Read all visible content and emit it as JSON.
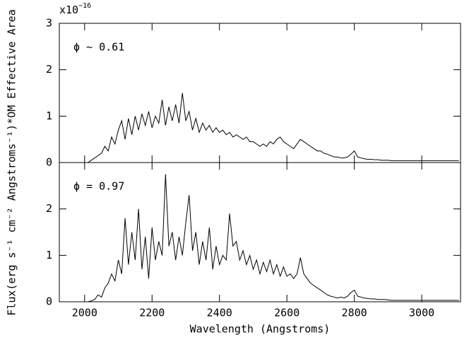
{
  "xlabel": "Wavelength (Angstroms)",
  "ylabel": "Flux(erg s⁻¹ cm⁻² Angstroms⁻¹)*OM Effective Area",
  "chart_data": [
    {
      "type": "line",
      "scale_base": "x10",
      "scale_exponent": "−16",
      "annotation": "ϕ ~ 0.61",
      "xlim": [
        1925,
        3115
      ],
      "xticks": [
        2000,
        2200,
        2400,
        2600,
        2800,
        3000
      ],
      "ylim": [
        0,
        3
      ],
      "yticks": [
        0,
        1,
        2,
        3
      ],
      "color": "#000000",
      "x": [
        1930,
        1940,
        1950,
        1960,
        1970,
        1980,
        1990,
        2000,
        2010,
        2020,
        2030,
        2040,
        2050,
        2060,
        2070,
        2080,
        2090,
        2100,
        2110,
        2120,
        2130,
        2140,
        2150,
        2160,
        2170,
        2180,
        2190,
        2200,
        2210,
        2220,
        2230,
        2240,
        2250,
        2260,
        2270,
        2280,
        2290,
        2300,
        2310,
        2320,
        2330,
        2340,
        2350,
        2360,
        2370,
        2380,
        2390,
        2400,
        2410,
        2420,
        2430,
        2440,
        2450,
        2460,
        2470,
        2480,
        2490,
        2500,
        2510,
        2520,
        2530,
        2540,
        2550,
        2560,
        2570,
        2580,
        2590,
        2600,
        2610,
        2620,
        2630,
        2640,
        2650,
        2660,
        2670,
        2680,
        2690,
        2700,
        2710,
        2720,
        2730,
        2740,
        2750,
        2760,
        2770,
        2780,
        2790,
        2800,
        2810,
        2820,
        2830,
        2840,
        2850,
        2860,
        2870,
        2880,
        2890,
        2900,
        2910,
        2920,
        2930,
        2940,
        2950,
        2960,
        2970,
        2980,
        2990,
        3000,
        3010,
        3020,
        3030,
        3040,
        3050,
        3060,
        3070,
        3080,
        3090,
        3100,
        3110
      ],
      "values": [
        0,
        0,
        0,
        0,
        0,
        0,
        0,
        0,
        0,
        0.05,
        0.1,
        0.15,
        0.2,
        0.35,
        0.25,
        0.55,
        0.4,
        0.7,
        0.9,
        0.5,
        0.95,
        0.6,
        1.0,
        0.7,
        1.05,
        0.8,
        1.1,
        0.75,
        1.0,
        0.85,
        1.35,
        0.8,
        1.2,
        0.9,
        1.25,
        0.85,
        1.5,
        0.9,
        1.1,
        0.7,
        0.95,
        0.65,
        0.85,
        0.7,
        0.8,
        0.65,
        0.75,
        0.65,
        0.7,
        0.6,
        0.65,
        0.55,
        0.6,
        0.55,
        0.5,
        0.55,
        0.45,
        0.45,
        0.4,
        0.35,
        0.4,
        0.35,
        0.45,
        0.4,
        0.5,
        0.55,
        0.45,
        0.4,
        0.35,
        0.3,
        0.4,
        0.5,
        0.45,
        0.4,
        0.35,
        0.3,
        0.25,
        0.25,
        0.2,
        0.18,
        0.15,
        0.12,
        0.12,
        0.1,
        0.1,
        0.12,
        0.18,
        0.25,
        0.12,
        0.1,
        0.08,
        0.07,
        0.07,
        0.06,
        0.06,
        0.05,
        0.05,
        0.05,
        0.04,
        0.04,
        0.04,
        0.04,
        0.04,
        0.04,
        0.04,
        0.04,
        0.04,
        0.04,
        0.04,
        0.04,
        0.04,
        0.04,
        0.04,
        0.04,
        0.04,
        0.04,
        0.04,
        0.04,
        0.04
      ]
    },
    {
      "type": "line",
      "annotation": "ϕ = 0.97",
      "xlim": [
        1925,
        3115
      ],
      "xticks": [
        2000,
        2200,
        2400,
        2600,
        2800,
        3000
      ],
      "ylim": [
        0,
        3
      ],
      "yticks": [
        0,
        1,
        2
      ],
      "color": "#000000",
      "x": [
        1930,
        1940,
        1950,
        1960,
        1970,
        1980,
        1990,
        2000,
        2010,
        2020,
        2030,
        2040,
        2050,
        2060,
        2070,
        2080,
        2090,
        2100,
        2110,
        2120,
        2130,
        2140,
        2150,
        2160,
        2170,
        2180,
        2190,
        2200,
        2210,
        2220,
        2230,
        2240,
        2250,
        2260,
        2270,
        2280,
        2290,
        2300,
        2310,
        2320,
        2330,
        2340,
        2350,
        2360,
        2370,
        2380,
        2390,
        2400,
        2410,
        2420,
        2430,
        2440,
        2450,
        2460,
        2470,
        2480,
        2490,
        2500,
        2510,
        2520,
        2530,
        2540,
        2550,
        2560,
        2570,
        2580,
        2590,
        2600,
        2610,
        2620,
        2630,
        2640,
        2650,
        2660,
        2670,
        2680,
        2690,
        2700,
        2710,
        2720,
        2730,
        2740,
        2750,
        2760,
        2770,
        2780,
        2790,
        2800,
        2810,
        2820,
        2830,
        2840,
        2850,
        2860,
        2870,
        2880,
        2890,
        2900,
        2910,
        2920,
        2930,
        2940,
        2950,
        2960,
        2970,
        2980,
        2990,
        3000,
        3010,
        3020,
        3030,
        3040,
        3050,
        3060,
        3070,
        3080,
        3090,
        3100,
        3110
      ],
      "values": [
        0,
        0,
        0,
        0,
        0,
        0,
        0,
        0,
        0,
        0.02,
        0.05,
        0.15,
        0.1,
        0.3,
        0.4,
        0.6,
        0.45,
        0.9,
        0.6,
        1.8,
        0.8,
        1.5,
        0.9,
        2.0,
        0.7,
        1.4,
        0.5,
        1.6,
        0.9,
        1.3,
        1.0,
        2.75,
        1.2,
        1.5,
        0.9,
        1.4,
        1.0,
        1.7,
        2.3,
        1.1,
        1.5,
        0.8,
        1.3,
        0.9,
        1.6,
        0.7,
        1.2,
        0.8,
        1.0,
        0.9,
        1.9,
        1.2,
        1.3,
        0.9,
        1.1,
        0.8,
        1.0,
        0.7,
        0.9,
        0.6,
        0.85,
        0.65,
        0.9,
        0.6,
        0.8,
        0.55,
        0.75,
        0.55,
        0.6,
        0.5,
        0.6,
        0.95,
        0.6,
        0.5,
        0.4,
        0.35,
        0.3,
        0.25,
        0.2,
        0.15,
        0.12,
        0.1,
        0.08,
        0.1,
        0.08,
        0.12,
        0.2,
        0.25,
        0.12,
        0.1,
        0.08,
        0.07,
        0.06,
        0.06,
        0.05,
        0.05,
        0.05,
        0.04,
        0.03,
        0.03,
        0.03,
        0.03,
        0.03,
        0.03,
        0.03,
        0.03,
        0.03,
        0.03,
        0.03,
        0.03,
        0.03,
        0.03,
        0.03,
        0.03,
        0.03,
        0.03,
        0.03,
        0.03,
        0.03
      ]
    }
  ]
}
